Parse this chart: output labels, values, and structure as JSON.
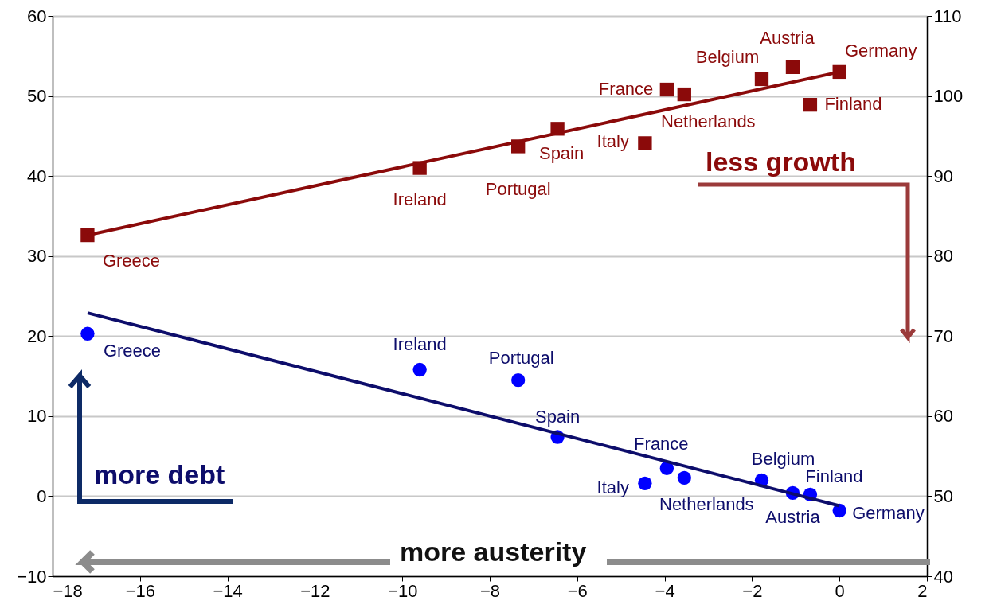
{
  "chart_data": {
    "type": "scatter",
    "xlim": [
      -18,
      2
    ],
    "xticks": [
      -18,
      -16,
      -14,
      -12,
      -10,
      -8,
      -6,
      -4,
      -2,
      0,
      2
    ],
    "ylim": [
      -10,
      60
    ],
    "yticks": [
      -10,
      0,
      10,
      20,
      30,
      40,
      50,
      60
    ],
    "y2lim": [
      40,
      110
    ],
    "y2ticks": [
      40,
      50,
      60,
      70,
      80,
      90,
      100,
      110
    ],
    "grid": "y",
    "series": [
      {
        "marker": "circle",
        "color": "#0000ff",
        "x": [
          -17.2,
          -9.6,
          -7.35,
          -6.45,
          -4.45,
          -3.95,
          -3.55,
          -1.78,
          -1.07,
          -0.67,
          0
        ],
        "values": [
          20.3,
          15.8,
          14.5,
          7.4,
          1.6,
          3.5,
          2.3,
          2.0,
          0.4,
          0.2,
          -1.8
        ]
      },
      {
        "type": "line",
        "color": "#0d0d6b",
        "x": [
          -17.2,
          0
        ],
        "values": [
          22.9,
          -1.2
        ]
      },
      {
        "marker": "square",
        "axis": "y2",
        "color": "#8b0a0a",
        "x": [
          -17.2,
          -9.6,
          -7.35,
          -6.45,
          -4.45,
          -3.95,
          -3.55,
          -1.78,
          -1.07,
          -0.67,
          0
        ],
        "values": [
          82.6,
          91.0,
          93.7,
          95.9,
          94.1,
          100.8,
          100.2,
          102.1,
          103.6,
          98.9,
          103.0
        ]
      },
      {
        "type": "line",
        "axis": "y2",
        "color": "#8b0a0a",
        "x": [
          -17.2,
          0
        ],
        "values": [
          82.6,
          103.0
        ]
      }
    ],
    "annotations": [
      {
        "text": "Greece",
        "x": -17.2,
        "y": 20.3
      },
      {
        "text": "Ireland",
        "x": -9.6,
        "y": 15.8
      },
      {
        "text": "Portugal",
        "x": -7.35,
        "y": 14.5
      },
      {
        "text": "Spain",
        "x": -6.45,
        "y": 7.4
      },
      {
        "text": "Italy",
        "x": -4.45,
        "y": 1.6
      },
      {
        "text": "France",
        "x": -3.95,
        "y": 3.5
      },
      {
        "text": "Netherlands",
        "x": -3.55,
        "y": 2.3
      },
      {
        "text": "Belgium",
        "x": -1.78,
        "y": 2.0
      },
      {
        "text": "Austria",
        "x": -1.07,
        "y": 0.4
      },
      {
        "text": "Finland",
        "x": -0.67,
        "y": 0.2
      },
      {
        "text": "Germany",
        "x": 0,
        "y": -1.8
      },
      "Greece",
      "Ireland",
      "Portugal",
      "Spain",
      "Italy",
      "France",
      "Netherlands",
      "Belgium",
      "Austria",
      "Finland",
      "Germany",
      "less growth",
      "more debt",
      "more austerity"
    ]
  }
}
